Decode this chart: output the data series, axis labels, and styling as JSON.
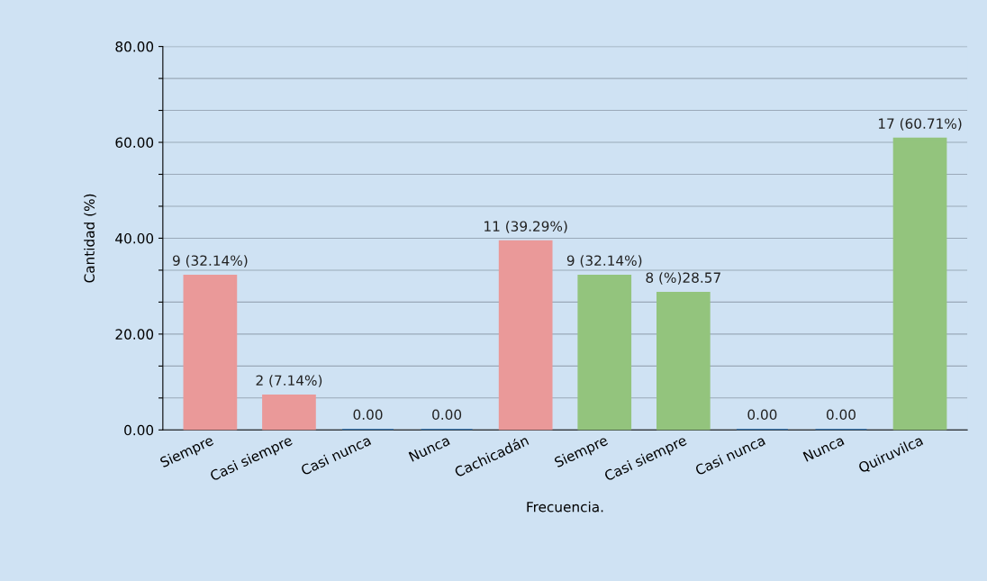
{
  "chart_data": {
    "type": "bar",
    "xlabel": "Frecuencia.",
    "ylabel": "Cantidad (%)",
    "categories": [
      "Siempre",
      "Casi siempre",
      "Casi nunca",
      "Nunca",
      "Cachicadán",
      "Siempre",
      "Casi siempre",
      "Casi nunca",
      "Nunca",
      "Quiruvilca"
    ],
    "values": [
      32.14,
      7.14,
      0,
      0,
      39.29,
      32.14,
      28.57,
      0,
      0,
      60.71
    ],
    "colors": [
      "#ea9999",
      "#ea9999",
      "#3d78b0",
      "#3d78b0",
      "#ea9999",
      "#93c47d",
      "#93c47d",
      "#3d78b0",
      "#3d78b0",
      "#93c47d"
    ],
    "value_labels": [
      "9 (32.14%)",
      "2 (7.14%)",
      "0.00",
      "0.00",
      "11 (39.29%)",
      "9 (32.14%)",
      "8 (%)28.57",
      "0.00",
      "0.00",
      "17 (60.71%)"
    ],
    "ylim": [
      0,
      80
    ],
    "yticks": [
      {
        "value": 0,
        "label": "0.00"
      },
      {
        "value": 6.67,
        "label": null
      },
      {
        "value": 13.33,
        "label": null
      },
      {
        "value": 20,
        "label": "20.00"
      },
      {
        "value": 26.67,
        "label": null
      },
      {
        "value": 33.33,
        "label": null
      },
      {
        "value": 40,
        "label": "40.00"
      },
      {
        "value": 46.67,
        "label": null
      },
      {
        "value": 53.33,
        "label": null
      },
      {
        "value": 60,
        "label": "60.00"
      },
      {
        "value": 66.67,
        "label": null
      },
      {
        "value": 73.33,
        "label": null
      },
      {
        "value": 80,
        "label": "80.00"
      }
    ],
    "grid": "y"
  }
}
